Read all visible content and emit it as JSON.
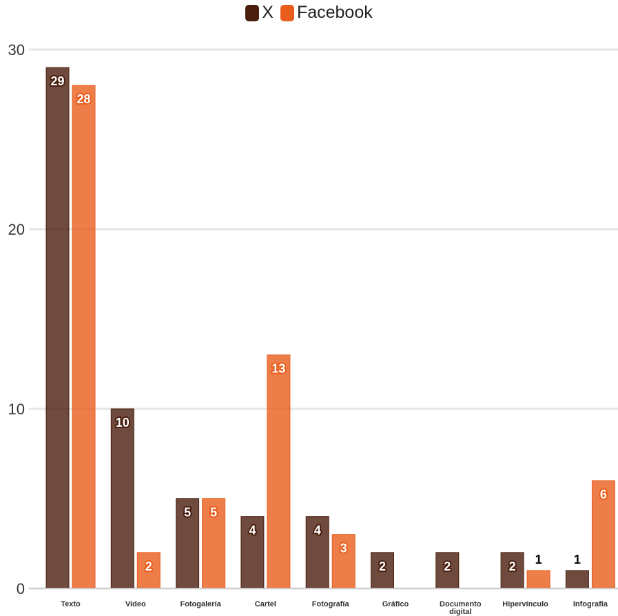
{
  "chart_data": {
    "type": "bar",
    "categories": [
      "Texto",
      "Video",
      "Fotogalería",
      "Cartel",
      "Fotografía",
      "Gráfico",
      "Documento digital",
      "Hipervínculo",
      "Infografía"
    ],
    "series": [
      {
        "name": "X",
        "color": "#4a1e0e",
        "values": [
          29,
          10,
          5,
          4,
          4,
          2,
          2,
          2,
          1
        ]
      },
      {
        "name": "Facebook",
        "color": "#e85d1c",
        "values": [
          28,
          2,
          5,
          13,
          3,
          0,
          0,
          1,
          6
        ]
      }
    ],
    "data_labels": {
      "X": [
        "29",
        "10",
        "5",
        "4",
        "4",
        "2",
        "2",
        "2",
        "1"
      ],
      "Facebook": [
        "28",
        "2",
        "5",
        "13",
        "3",
        "",
        "",
        "1",
        "6"
      ]
    },
    "title": "",
    "xlabel": "",
    "ylabel": "",
    "ylim": [
      0,
      30
    ],
    "yticks": [
      0,
      10,
      20,
      30
    ],
    "grid": true,
    "legend_position": "top-center"
  }
}
